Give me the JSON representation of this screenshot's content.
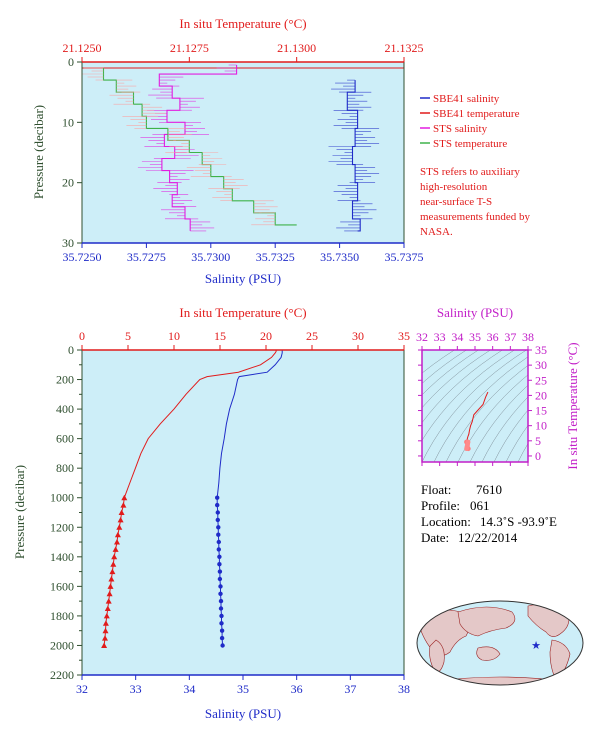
{
  "colors": {
    "sbe41_salinity": "#1f2bc8",
    "sbe41_temperature": "#e11b1b",
    "sts_salinity": "#e21ee0",
    "sts_temperature": "#3fb24a",
    "plot_background": "#cdeef8",
    "pressure_axis": "#2f4f2f",
    "salinity_axis": "#1f2bc8",
    "temperature_axis": "#e11b1b",
    "ts_axis": "#c21ec8"
  },
  "chart_data": [
    {
      "type": "line",
      "title": "",
      "top_axis_label": "In situ Temperature (°C)",
      "xlabel": "Salinity (PSU)",
      "ylabel": "Pressure (decibar)",
      "salinity_range": [
        35.725,
        35.7375
      ],
      "temperature_range": [
        21.125,
        21.1325
      ],
      "pressure_range": [
        30,
        0
      ],
      "salinity_ticks": [
        "35.7250",
        "35.7275",
        "35.7300",
        "35.7325",
        "35.7350",
        "35.7375"
      ],
      "temperature_ticks": [
        "21.1250",
        "21.1275",
        "21.1300",
        "21.1325"
      ],
      "pressure_ticks": [
        "0",
        "10",
        "20",
        "30"
      ],
      "grid": false,
      "legend_position": "right",
      "legend": [
        "SBE41 salinity",
        "SBE41 temperature",
        "STS salinity",
        "STS temperature"
      ],
      "note": "STS refers to auxiliary high-resolution near-surface T-S measurements funded by NASA.",
      "series": [
        {
          "name": "SBE41 salinity",
          "axis": "salinity",
          "pressure": [
            3,
            5,
            8,
            11,
            14,
            17,
            20,
            23,
            26,
            28
          ],
          "values": [
            35.7356,
            35.7353,
            35.7357,
            35.7356,
            35.7355,
            35.7356,
            35.7357,
            35.7355,
            35.7358,
            35.7357
          ]
        },
        {
          "name": "SBE41 temperature",
          "axis": "temperature",
          "pressure": [
            0,
            0.5,
            1
          ],
          "values": [
            21.1325,
            21.1325,
            21.125
          ]
        },
        {
          "name": "STS salinity",
          "axis": "salinity",
          "pressure": [
            0.5,
            2,
            4,
            6,
            8,
            10,
            12,
            14,
            16,
            18,
            20,
            22,
            24,
            26,
            28
          ],
          "values": [
            35.731,
            35.728,
            35.7285,
            35.7288,
            35.7283,
            35.729,
            35.7282,
            35.7286,
            35.7281,
            35.7284,
            35.7287,
            35.7285,
            35.729,
            35.7292,
            35.7292
          ]
        },
        {
          "name": "STS temperature",
          "axis": "temperature",
          "pressure": [
            1,
            3,
            5,
            7,
            9,
            11,
            13,
            15,
            17,
            19,
            21,
            23,
            25,
            27
          ],
          "values": [
            21.1255,
            21.1258,
            21.1262,
            21.1264,
            21.1265,
            21.127,
            21.1275,
            21.1278,
            21.128,
            21.1283,
            21.1285,
            21.129,
            21.1295,
            21.13
          ]
        }
      ]
    },
    {
      "type": "line",
      "title": "",
      "top_axis_label": "In situ Temperature (°C)",
      "xlabel": "Salinity (PSU)",
      "ylabel": "Pressure (decibar)",
      "salinity_range": [
        32,
        38
      ],
      "temperature_range": [
        0,
        35
      ],
      "pressure_range": [
        2200,
        0
      ],
      "salinity_ticks": [
        "32",
        "33",
        "34",
        "35",
        "36",
        "37",
        "38"
      ],
      "temperature_ticks": [
        "0",
        "5",
        "10",
        "15",
        "20",
        "25",
        "30",
        "35"
      ],
      "pressure_ticks": [
        "0",
        "200",
        "400",
        "600",
        "800",
        "1000",
        "1200",
        "1400",
        "1600",
        "1800",
        "2000",
        "2200"
      ],
      "grid": false,
      "series": [
        {
          "name": "SBE41 salinity",
          "axis": "salinity",
          "pressure": [
            0,
            5,
            10,
            20,
            50,
            100,
            150,
            180,
            200,
            300,
            400,
            500,
            600,
            700,
            800,
            900,
            1000
          ],
          "values": [
            35.73,
            35.73,
            35.73,
            35.73,
            35.71,
            35.6,
            35.45,
            34.93,
            34.9,
            34.84,
            34.75,
            34.69,
            34.65,
            34.6,
            34.57,
            34.55,
            34.52
          ]
        },
        {
          "name": "SBE41 salinity (deep bottles)",
          "axis": "salinity",
          "pressure": [
            1000,
            1050,
            1100,
            1150,
            1200,
            1250,
            1300,
            1350,
            1400,
            1450,
            1500,
            1550,
            1600,
            1650,
            1700,
            1750,
            1800,
            1850,
            1900,
            1950,
            2000
          ],
          "values": [
            34.52,
            34.52,
            34.53,
            34.53,
            34.54,
            34.54,
            34.55,
            34.55,
            34.56,
            34.56,
            34.57,
            34.57,
            34.58,
            34.58,
            34.59,
            34.59,
            34.6,
            34.6,
            34.61,
            34.61,
            34.62
          ]
        },
        {
          "name": "SBE41 temperature",
          "axis": "temperature",
          "pressure": [
            0,
            5,
            10,
            20,
            50,
            100,
            150,
            180,
            200,
            300,
            400,
            500,
            600,
            700,
            800,
            900,
            1000
          ],
          "values": [
            21.1,
            21.1,
            21.1,
            21.0,
            20.6,
            19.4,
            17.0,
            13.6,
            12.8,
            11.3,
            10.0,
            8.5,
            7.2,
            6.4,
            5.8,
            5.2,
            4.6
          ]
        },
        {
          "name": "SBE41 temperature (deep bottles)",
          "axis": "temperature",
          "pressure": [
            1000,
            1050,
            1100,
            1150,
            1200,
            1250,
            1300,
            1350,
            1400,
            1450,
            1500,
            1550,
            1600,
            1650,
            1700,
            1750,
            1800,
            1850,
            1900,
            1950,
            2000
          ],
          "values": [
            4.6,
            4.5,
            4.3,
            4.2,
            4.05,
            3.9,
            3.8,
            3.65,
            3.5,
            3.4,
            3.3,
            3.2,
            3.1,
            3.0,
            2.9,
            2.8,
            2.7,
            2.6,
            2.55,
            2.5,
            2.4
          ]
        }
      ]
    },
    {
      "type": "scatter",
      "title": "",
      "xlabel": "Salinity (PSU)",
      "ylabel": "In situ Temperature (°C)",
      "salinity_range": [
        32,
        38
      ],
      "temperature_range": [
        -2,
        35
      ],
      "salinity_ticks": [
        "32",
        "33",
        "34",
        "35",
        "36",
        "37",
        "38"
      ],
      "temperature_ticks": [
        "0",
        "5",
        "10",
        "15",
        "20",
        "25",
        "30",
        "35"
      ],
      "grid": false,
      "density_contours": true,
      "series": [
        {
          "name": "T-S",
          "salinity": [
            35.73,
            35.6,
            35.45,
            34.93,
            34.84,
            34.75,
            34.69,
            34.65,
            34.6,
            34.57,
            34.55,
            34.52,
            34.57,
            34.62
          ],
          "temperature": [
            21.1,
            19.4,
            17.0,
            13.6,
            11.3,
            10.0,
            8.5,
            7.2,
            6.4,
            5.8,
            5.2,
            4.6,
            3.3,
            2.4
          ]
        }
      ]
    }
  ],
  "info": {
    "float_label": "Float:",
    "float_value": "7610",
    "profile_label": "Profile:",
    "profile_value": "061",
    "location_label": "Location:",
    "location_value": "14.3˚S  -93.9˚E",
    "date_label": "Date:",
    "date_value": "12/22/2014"
  },
  "map": {
    "marker_symbol": "★"
  }
}
